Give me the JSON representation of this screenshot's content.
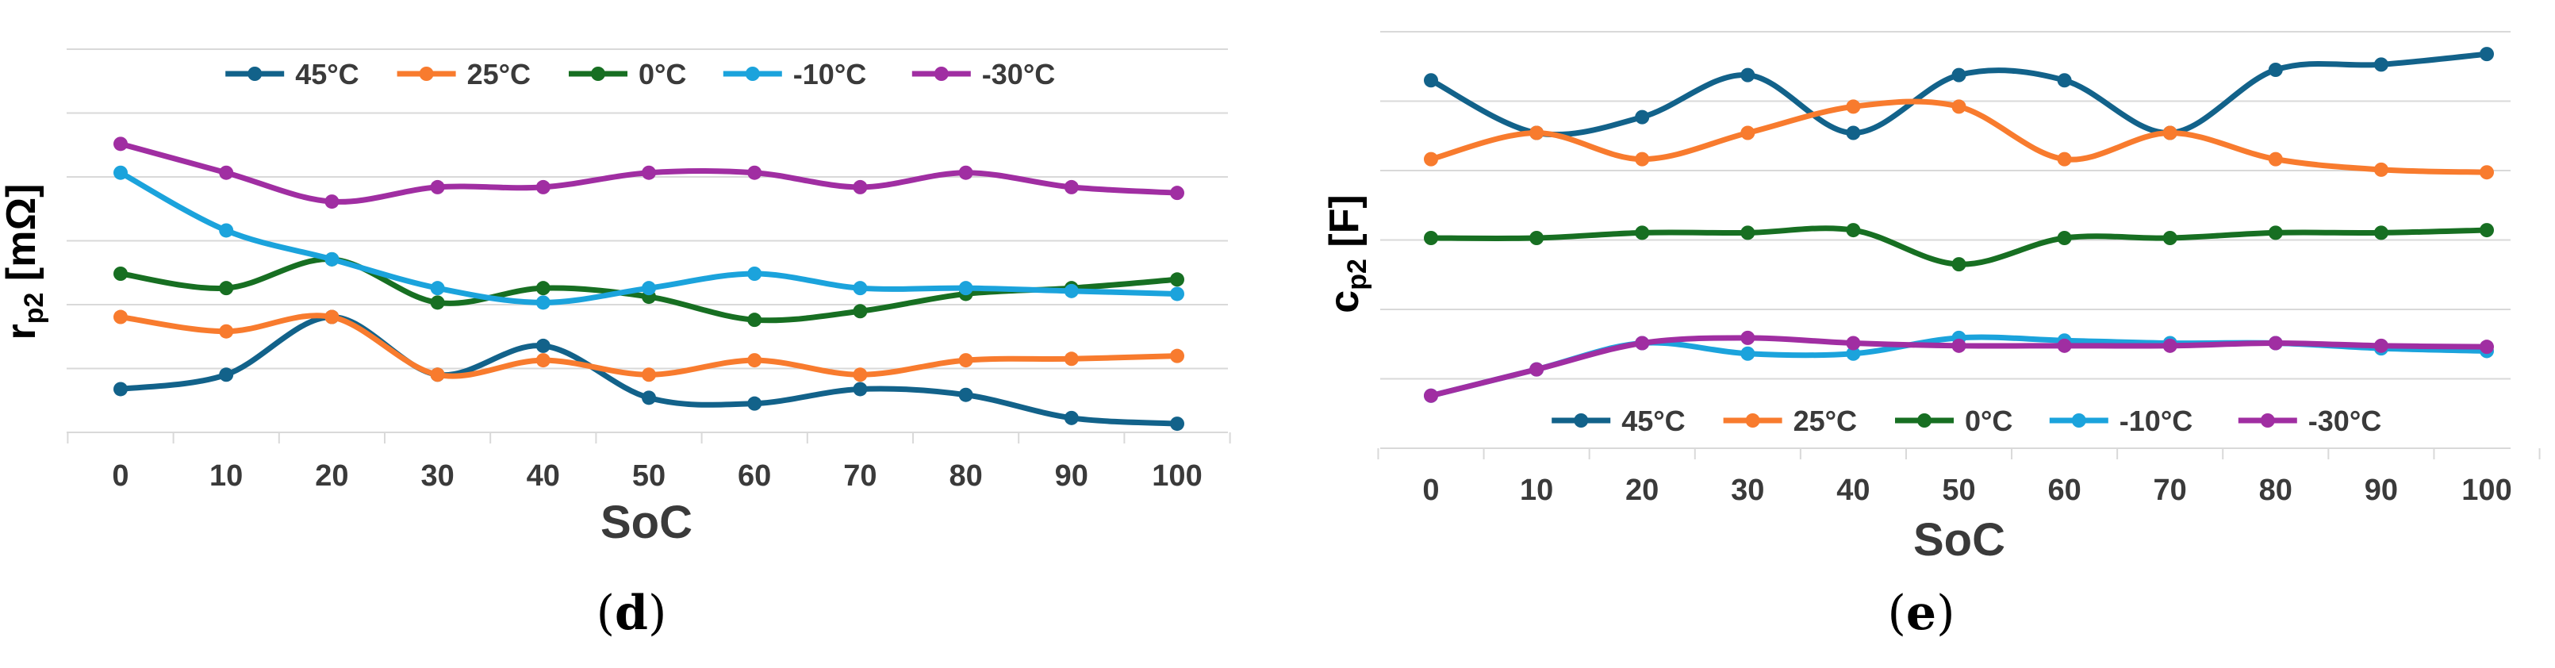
{
  "colors": {
    "s45": "#12628a",
    "s25": "#f87b2e",
    "s0": "#176f22",
    "sm10": "#1ba3dc",
    "sm30": "#a02ea2",
    "grid": "#d9d9d9",
    "text": "#3a3a3a"
  },
  "chart_data": [
    {
      "type": "line",
      "panel": "d",
      "caption_open": "(",
      "caption_letter": "d",
      "caption_close": ")",
      "ylabel_main": "r",
      "ylabel_sub": "p2",
      "ylabel_unit": " [mΩ]",
      "xlabel": "SoC",
      "categories": [
        "0",
        "10",
        "20",
        "30",
        "40",
        "50",
        "60",
        "70",
        "80",
        "90",
        "100"
      ],
      "ylim": [
        0,
        11
      ],
      "legend_position": "top",
      "series": [
        {
          "name": "45°C",
          "color_key": "s45",
          "values": [
            1.5,
            2.0,
            4.0,
            2.0,
            3.0,
            1.2,
            1.0,
            1.5,
            1.3,
            0.5,
            0.3
          ]
        },
        {
          "name": "25°C",
          "color_key": "s25",
          "values": [
            4.0,
            3.5,
            4.0,
            2.0,
            2.5,
            2.0,
            2.5,
            2.0,
            2.5,
            2.55,
            2.65
          ]
        },
        {
          "name": "0°C",
          "color_key": "s0",
          "values": [
            5.5,
            5.0,
            6.0,
            4.5,
            5.0,
            4.7,
            3.9,
            4.2,
            4.8,
            5.0,
            5.3
          ]
        },
        {
          "name": "-10°C",
          "color_key": "sm10",
          "values": [
            9.0,
            7.0,
            6.0,
            5.0,
            4.5,
            5.0,
            5.5,
            5.0,
            5.0,
            4.9,
            4.8
          ]
        },
        {
          "name": "-30°C",
          "color_key": "sm30",
          "values": [
            10.0,
            9.0,
            8.0,
            8.5,
            8.5,
            9.0,
            9.0,
            8.5,
            9.0,
            8.5,
            8.3
          ]
        }
      ]
    },
    {
      "type": "line",
      "panel": "e",
      "caption_open": "(",
      "caption_letter": "e",
      "caption_close": ")",
      "ylabel_main": "c",
      "ylabel_sub": "p2",
      "ylabel_unit": " [F]",
      "xlabel": "SoC",
      "categories": [
        "0",
        "10",
        "20",
        "30",
        "40",
        "50",
        "60",
        "70",
        "80",
        "90",
        "100"
      ],
      "ylim": [
        0,
        8
      ],
      "legend_position": "bottom",
      "series": [
        {
          "name": "45°C",
          "color_key": "s45",
          "values": [
            7.0,
            6.0,
            6.3,
            7.1,
            6.0,
            7.1,
            7.0,
            6.0,
            7.2,
            7.3,
            7.5
          ]
        },
        {
          "name": "25°C",
          "color_key": "s25",
          "values": [
            5.5,
            6.0,
            5.5,
            6.0,
            6.5,
            6.5,
            5.5,
            6.0,
            5.5,
            5.3,
            5.25
          ]
        },
        {
          "name": "0°C",
          "color_key": "s0",
          "values": [
            4.0,
            4.0,
            4.1,
            4.1,
            4.15,
            3.5,
            4.0,
            4.0,
            4.1,
            4.1,
            4.15
          ]
        },
        {
          "name": "-10°C",
          "color_key": "sm10",
          "values": [
            1.0,
            1.5,
            2.0,
            1.8,
            1.8,
            2.1,
            2.05,
            2.0,
            2.0,
            1.9,
            1.85
          ]
        },
        {
          "name": "-30°C",
          "color_key": "sm30",
          "values": [
            1.0,
            1.5,
            2.0,
            2.1,
            2.0,
            1.95,
            1.95,
            1.95,
            2.0,
            1.95,
            1.93
          ]
        }
      ]
    }
  ]
}
